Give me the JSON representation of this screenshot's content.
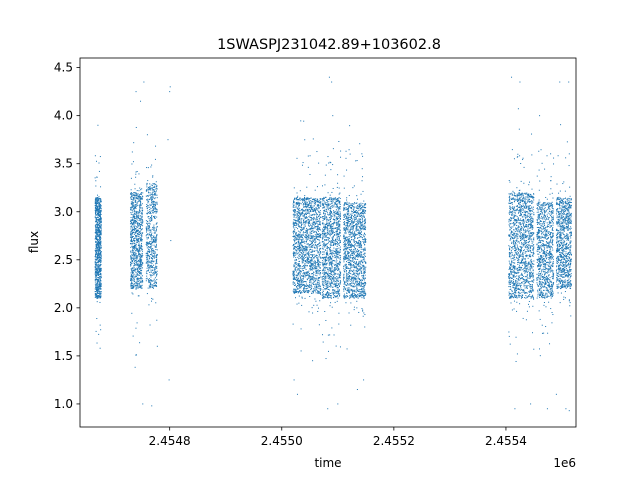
{
  "chart_data": {
    "type": "scatter",
    "title": "1SWASPJ231042.89+103602.8",
    "xlabel": "time",
    "ylabel": "flux",
    "x_offset_label": "1e6",
    "xlim": [
      2454640,
      2455525
    ],
    "ylim": [
      0.76,
      4.6
    ],
    "x_ticks": [
      2454800,
      2455000,
      2455200,
      2455400
    ],
    "x_tick_labels": [
      "2.4548",
      "2.4550",
      "2.4552",
      "2.4554"
    ],
    "y_ticks": [
      1.0,
      1.5,
      2.0,
      2.5,
      3.0,
      3.5,
      4.0,
      4.5
    ],
    "y_tick_labels": [
      "1.0",
      "1.5",
      "2.0",
      "2.5",
      "3.0",
      "3.5",
      "4.0",
      "4.5"
    ],
    "grid": false,
    "marker_color": "#1f77b4",
    "clusters": [
      {
        "x_start": 2454667,
        "x_end": 2454678,
        "y_low": 2.1,
        "y_high": 3.15,
        "n": 900
      },
      {
        "x_start": 2454730,
        "x_end": 2454752,
        "y_low": 2.2,
        "y_high": 3.2,
        "n": 900
      },
      {
        "x_start": 2454758,
        "x_end": 2454778,
        "y_low": 2.2,
        "y_high": 3.3,
        "n": 600
      },
      {
        "x_start": 2455020,
        "x_end": 2455070,
        "y_low": 2.15,
        "y_high": 3.15,
        "n": 1600
      },
      {
        "x_start": 2455072,
        "x_end": 2455105,
        "y_low": 2.1,
        "y_high": 3.15,
        "n": 1100
      },
      {
        "x_start": 2455110,
        "x_end": 2455150,
        "y_low": 2.1,
        "y_high": 3.1,
        "n": 1300
      },
      {
        "x_start": 2455405,
        "x_end": 2455450,
        "y_low": 2.1,
        "y_high": 3.2,
        "n": 1400
      },
      {
        "x_start": 2455455,
        "x_end": 2455485,
        "y_low": 2.1,
        "y_high": 3.1,
        "n": 900
      },
      {
        "x_start": 2455490,
        "x_end": 2455517,
        "y_low": 2.2,
        "y_high": 3.15,
        "n": 900
      }
    ],
    "outliers": [
      {
        "x": 2454672,
        "y": 3.9
      },
      {
        "x": 2454740,
        "y": 4.25
      },
      {
        "x": 2454748,
        "y": 4.15
      },
      {
        "x": 2454754,
        "y": 4.35
      },
      {
        "x": 2454801,
        "y": 4.3
      },
      {
        "x": 2454800,
        "y": 4.25
      },
      {
        "x": 2454802,
        "y": 2.7
      },
      {
        "x": 2454797,
        "y": 3.75
      },
      {
        "x": 2454752,
        "y": 1.0
      },
      {
        "x": 2454768,
        "y": 0.98
      },
      {
        "x": 2454799,
        "y": 1.25
      },
      {
        "x": 2454778,
        "y": 1.6
      },
      {
        "x": 2455022,
        "y": 1.25
      },
      {
        "x": 2455028,
        "y": 1.1
      },
      {
        "x": 2455055,
        "y": 1.45
      },
      {
        "x": 2455085,
        "y": 4.4
      },
      {
        "x": 2455089,
        "y": 4.35
      },
      {
        "x": 2455091,
        "y": 4.0
      },
      {
        "x": 2455100,
        "y": 1.0
      },
      {
        "x": 2455082,
        "y": 0.95
      },
      {
        "x": 2455122,
        "y": 3.6
      },
      {
        "x": 2455135,
        "y": 1.15
      },
      {
        "x": 2455146,
        "y": 1.25
      },
      {
        "x": 2455410,
        "y": 4.4
      },
      {
        "x": 2455425,
        "y": 4.35
      },
      {
        "x": 2455416,
        "y": 0.95
      },
      {
        "x": 2455444,
        "y": 1.0
      },
      {
        "x": 2455460,
        "y": 4.0
      },
      {
        "x": 2455490,
        "y": 1.1
      },
      {
        "x": 2455496,
        "y": 4.35
      },
      {
        "x": 2455512,
        "y": 4.35
      },
      {
        "x": 2455507,
        "y": 0.95
      },
      {
        "x": 2455513,
        "y": 0.93
      },
      {
        "x": 2455474,
        "y": 0.95
      }
    ]
  }
}
